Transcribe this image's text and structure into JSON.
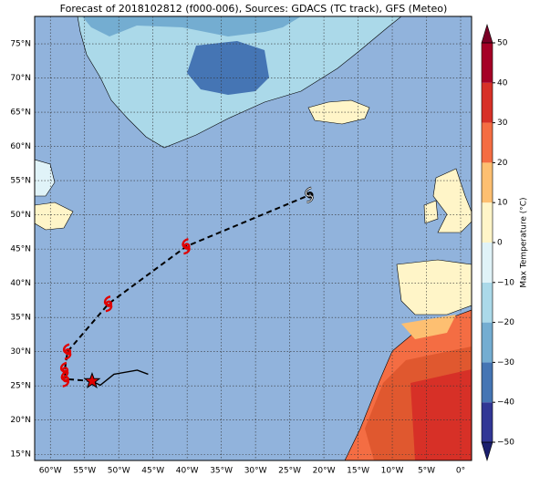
{
  "map": {
    "title": "Forecast of 2018102812 (f000-006), Sources: GDACS (TC track), GFS (Meteo)",
    "xlim": [
      -62.3,
      1.6
    ],
    "ylim": [
      14.1,
      79
    ],
    "xticks": [
      {
        "value": -60,
        "label": "60°W"
      },
      {
        "value": -55,
        "label": "55°W"
      },
      {
        "value": -50,
        "label": "50°W"
      },
      {
        "value": -45,
        "label": "45°W"
      },
      {
        "value": -40,
        "label": "40°W"
      },
      {
        "value": -35,
        "label": "35°W"
      },
      {
        "value": -30,
        "label": "30°W"
      },
      {
        "value": -25,
        "label": "25°W"
      },
      {
        "value": -20,
        "label": "20°W"
      },
      {
        "value": -15,
        "label": "15°W"
      },
      {
        "value": -10,
        "label": "10°W"
      },
      {
        "value": -5,
        "label": "5°W"
      },
      {
        "value": 0,
        "label": "0°"
      }
    ],
    "yticks": [
      {
        "value": 15,
        "label": "15°N"
      },
      {
        "value": 20,
        "label": "20°N"
      },
      {
        "value": 25,
        "label": "25°N"
      },
      {
        "value": 30,
        "label": "30°N"
      },
      {
        "value": 35,
        "label": "35°N"
      },
      {
        "value": 40,
        "label": "40°N"
      },
      {
        "value": 45,
        "label": "45°N"
      },
      {
        "value": 50,
        "label": "50°N"
      },
      {
        "value": 55,
        "label": "55°N"
      },
      {
        "value": 60,
        "label": "60°N"
      },
      {
        "value": 65,
        "label": "65°N"
      },
      {
        "value": 70,
        "label": "70°N"
      },
      {
        "value": 75,
        "label": "75°N"
      }
    ],
    "grid": true,
    "colorbar": {
      "label": "Max Temperature (°C)",
      "lim": [
        -50,
        50
      ],
      "ticks": [
        {
          "value": -50,
          "label": "−50"
        },
        {
          "value": -40,
          "label": "−40"
        },
        {
          "value": -30,
          "label": "−30"
        },
        {
          "value": -20,
          "label": "−20"
        },
        {
          "value": -10,
          "label": "−10"
        },
        0,
        10,
        20,
        30,
        40,
        50
      ],
      "colors": [
        "#313695",
        "#4575b4",
        "#74add1",
        "#abd9e9",
        "#e0f3f8",
        "#fff5c8",
        "#fdbf71",
        "#f46d43",
        "#d73027",
        "#a50026"
      ],
      "extend_colors": [
        "#1b1f6e",
        "#7a0026"
      ]
    },
    "forecast_track": {
      "lon": [
        -53.9,
        -57.8,
        -57.9,
        -57.5,
        -51.5,
        -40.1,
        -22.1
      ],
      "lat": [
        25.7,
        26.0,
        27.3,
        30.0,
        37.0,
        45.4,
        52.9
      ]
    },
    "past_track": {
      "lon": [
        -53.9,
        -52.7,
        -50.7,
        -47.3,
        -45.7
      ],
      "lat": [
        25.7,
        25.1,
        26.7,
        27.3,
        26.7
      ]
    }
  }
}
